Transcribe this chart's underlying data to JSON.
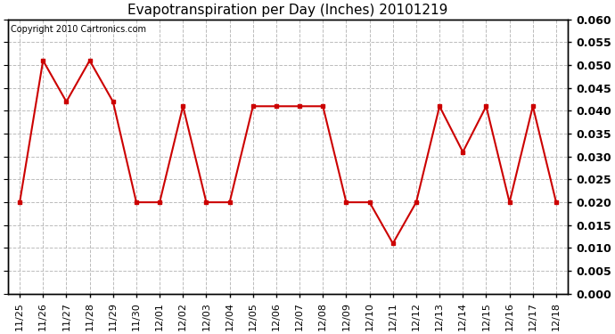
{
  "title": "Evapotranspiration per Day (Inches) 20101219",
  "copyright_text": "Copyright 2010 Cartronics.com",
  "x_labels": [
    "11/25",
    "11/26",
    "11/27",
    "11/28",
    "11/29",
    "11/30",
    "12/01",
    "12/02",
    "12/03",
    "12/04",
    "12/05",
    "12/06",
    "12/07",
    "12/08",
    "12/09",
    "12/10",
    "12/11",
    "12/12",
    "12/13",
    "12/14",
    "12/15",
    "12/16",
    "12/17",
    "12/18"
  ],
  "y_values": [
    0.02,
    0.051,
    0.042,
    0.051,
    0.042,
    0.02,
    0.02,
    0.041,
    0.02,
    0.02,
    0.041,
    0.041,
    0.041,
    0.041,
    0.02,
    0.02,
    0.011,
    0.02,
    0.041,
    0.031,
    0.041,
    0.02,
    0.041,
    0.02
  ],
  "line_color": "#cc0000",
  "marker": "s",
  "marker_size": 3,
  "marker_color": "#cc0000",
  "y_min": 0.0,
  "y_max": 0.06,
  "y_tick_step": 0.005,
  "grid_color": "#bbbbbb",
  "grid_linestyle": "--",
  "bg_color": "#ffffff",
  "plot_bg_color": "#ffffff",
  "border_color": "#000000",
  "title_fontsize": 11,
  "copyright_fontsize": 7,
  "tick_fontsize": 8,
  "ytick_fontsize": 9,
  "line_width": 1.5
}
